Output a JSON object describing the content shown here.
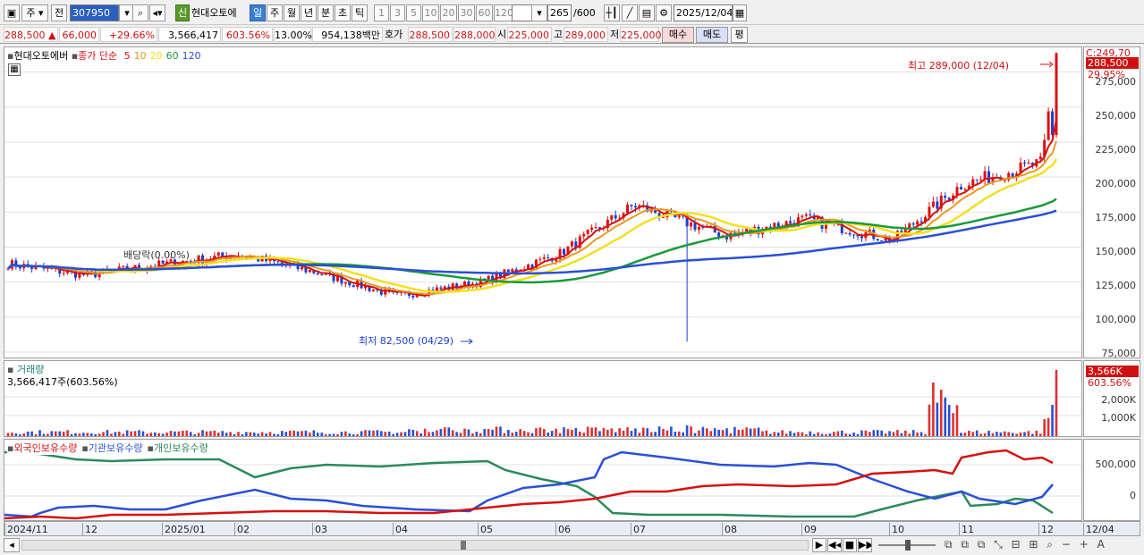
{
  "toolbar": {
    "type_label": "주",
    "prev_label": "전",
    "code_value": "307950",
    "badge_new": "신",
    "stock_name": "현대오토에",
    "periods": [
      "일",
      "주",
      "월",
      "년",
      "분",
      "초",
      "틱"
    ],
    "nums": [
      "1",
      "3",
      "5",
      "10",
      "20",
      "30",
      "60",
      "120"
    ],
    "count_value": "265",
    "count_total": "/600",
    "date_value": "2025/12/04"
  },
  "quote": {
    "price": "288,500",
    "arrow": "▲",
    "change": "66,000",
    "rate": "+29.66%",
    "volume": "3,566,417",
    "vol_rate": "603.56%",
    "turnover": "13.00%",
    "amount": "954,138백만",
    "bid_label": "호가",
    "ask": "288,500",
    "bid": "288,000",
    "open_label": "시",
    "open": "225,000",
    "high_label": "고",
    "high": "289,000",
    "low_label": "저",
    "low": "225,000",
    "buy_label": "매수",
    "sell_label": "매도",
    "eval_label": "평"
  },
  "price_panel": {
    "name": "현대오토에버",
    "indicator": "종가 단순",
    "ma_labels": [
      "5",
      "10",
      "20",
      "60",
      "120"
    ],
    "ma_colors": [
      "#d81010",
      "#e89a20",
      "#f2e020",
      "#1a9a3a",
      "#2a4fd8"
    ],
    "high_note": "최고 289,000 (12/04)",
    "low_note": "최저 82,500 (04/29)",
    "dividend_note": "배당락(0.00%)",
    "cur_price_box": "288,500",
    "cur_rate_box": "29.95%",
    "top_cut": "C:249,70",
    "yticks": [
      "275,000",
      "250,000",
      "225,000",
      "200,000",
      "175,000",
      "150,000",
      "125,000",
      "100,000",
      "75,000"
    ]
  },
  "volume_panel": {
    "title": "거래량",
    "value": "3,566,417주(603.56%)",
    "box_val": "3,566K",
    "box_rate": "603.56%",
    "yticks": [
      "2,000K",
      "1,000K"
    ]
  },
  "holding_panel": {
    "series": [
      {
        "name": "외국인보유수량",
        "color": "#d81010"
      },
      {
        "name": "기관보유수량",
        "color": "#2a4fd8"
      },
      {
        "name": "개인보유수량",
        "color": "#2a8a5a"
      }
    ],
    "yticks": [
      "500,000",
      "0"
    ]
  },
  "xaxis": [
    "2024/11",
    "12",
    "2025/01",
    "02",
    "03",
    "04",
    "05",
    "06",
    "07",
    "08",
    "09",
    "10",
    "11",
    "12",
    "12/04"
  ],
  "chart_data": {
    "type": "candlestick",
    "x": [
      "2024/11",
      "12",
      "2025/01",
      "02",
      "03",
      "04",
      "05",
      "06",
      "07",
      "08",
      "09",
      "10",
      "11",
      "12",
      "12/04"
    ],
    "close_by_month": [
      138000,
      130000,
      138000,
      145000,
      132000,
      115000,
      125000,
      145000,
      180000,
      158000,
      170000,
      155000,
      195000,
      210000,
      288500
    ],
    "high": 289000,
    "low": 82500,
    "ylim": [
      75000,
      290000
    ]
  }
}
